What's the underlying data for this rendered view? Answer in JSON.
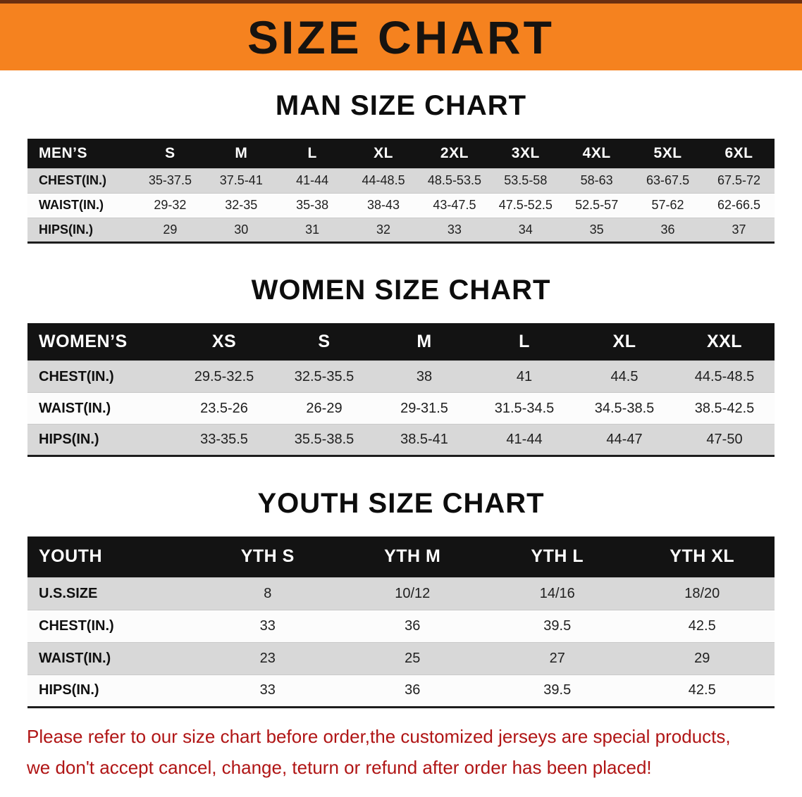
{
  "banner": {
    "title": "SIZE CHART"
  },
  "sections": [
    {
      "id": "men",
      "heading": "MAN SIZE CHART",
      "table": {
        "header": [
          "MEN’S",
          "S",
          "M",
          "L",
          "XL",
          "2XL",
          "3XL",
          "4XL",
          "5XL",
          "6XL"
        ],
        "rows": [
          [
            "CHEST(IN.)",
            "35-37.5",
            "37.5-41",
            "41-44",
            "44-48.5",
            "48.5-53.5",
            "53.5-58",
            "58-63",
            "63-67.5",
            "67.5-72"
          ],
          [
            "WAIST(IN.)",
            "29-32",
            "32-35",
            "35-38",
            "38-43",
            "43-47.5",
            "47.5-52.5",
            "52.5-57",
            "57-62",
            "62-66.5"
          ],
          [
            "HIPS(IN.)",
            "29",
            "30",
            "31",
            "32",
            "33",
            "34",
            "35",
            "36",
            "37"
          ]
        ]
      }
    },
    {
      "id": "women",
      "heading": "WOMEN SIZE CHART",
      "table": {
        "header": [
          "WOMEN’S",
          "XS",
          "S",
          "M",
          "L",
          "XL",
          "XXL"
        ],
        "rows": [
          [
            "CHEST(IN.)",
            "29.5-32.5",
            "32.5-35.5",
            "38",
            "41",
            "44.5",
            "44.5-48.5"
          ],
          [
            "WAIST(IN.)",
            "23.5-26",
            "26-29",
            "29-31.5",
            "31.5-34.5",
            "34.5-38.5",
            "38.5-42.5"
          ],
          [
            "HIPS(IN.)",
            "33-35.5",
            "35.5-38.5",
            "38.5-41",
            "41-44",
            "44-47",
            "47-50"
          ]
        ]
      }
    },
    {
      "id": "youth",
      "heading": "YOUTH SIZE CHART",
      "table": {
        "header": [
          "YOUTH",
          "YTH S",
          "YTH M",
          "YTH L",
          "YTH XL"
        ],
        "rows": [
          [
            "U.S.SIZE",
            "8",
            "10/12",
            "14/16",
            "18/20"
          ],
          [
            "CHEST(IN.)",
            "33",
            "36",
            "39.5",
            "42.5"
          ],
          [
            "WAIST(IN.)",
            "23",
            "25",
            "27",
            "29"
          ],
          [
            "HIPS(IN.)",
            "33",
            "36",
            "39.5",
            "42.5"
          ]
        ]
      }
    }
  ],
  "disclaimer": {
    "lines": [
      "Please refer to our size chart before order,the customized jerseys are special products,",
      "we don't accept cancel, change, teturn or refund after order has been placed!"
    ]
  },
  "colors": {
    "banner_orange": "#f5821f",
    "table_header_black": "#131313",
    "row_gray": "#d8d8d8",
    "row_white": "#fcfcfc",
    "disclaimer_red": "#b01515"
  }
}
